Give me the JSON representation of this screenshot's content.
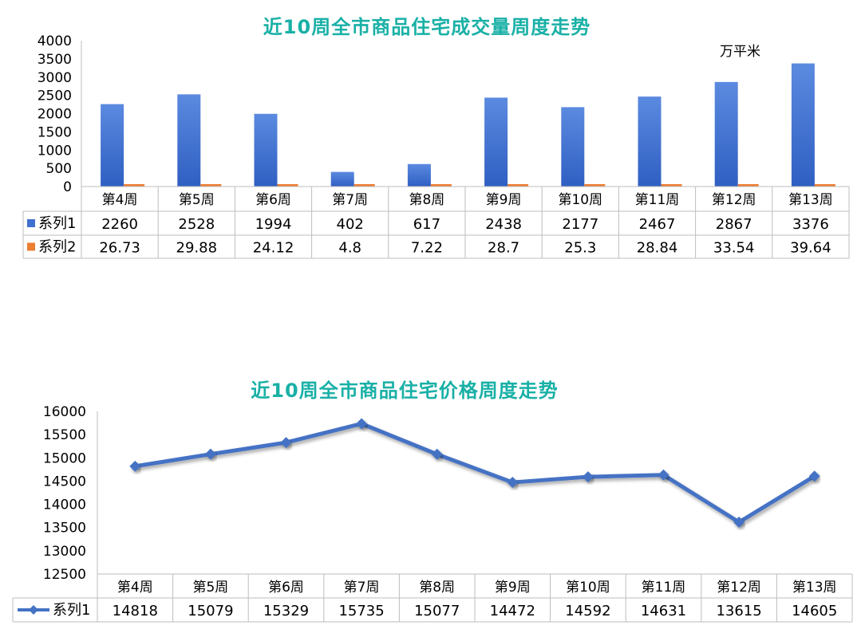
{
  "chart_data": [
    {
      "type": "bar",
      "title": "近10周全市商品住宅成交量周度走势",
      "unit_label": "万平米",
      "categories": [
        "第4周",
        "第5周",
        "第6周",
        "第7周",
        "第8周",
        "第9周",
        "第10周",
        "第11周",
        "第12周",
        "第13周"
      ],
      "series": [
        {
          "name": "系列1",
          "color": "#3f6fd0",
          "values": [
            2260,
            2528,
            1994,
            402,
            617,
            2438,
            2177,
            2467,
            2867,
            3376
          ]
        },
        {
          "name": "系列2",
          "color": "#ed7d31",
          "values": [
            26.73,
            29.88,
            24.12,
            4.8,
            7.22,
            28.7,
            25.3,
            28.84,
            33.54,
            39.64
          ]
        }
      ],
      "ylim": [
        0,
        4000
      ],
      "yticks": [
        "4000",
        "3500",
        "3000",
        "2500",
        "2000",
        "1500",
        "1000",
        "500",
        "0"
      ],
      "value_labels": [
        [
          "2260",
          "2528",
          "1994",
          "402",
          "617",
          "2438",
          "2177",
          "2467",
          "2867",
          "3376"
        ],
        [
          "26.73",
          "29.88",
          "24.12",
          "4.8",
          "7.22",
          "28.7",
          "25.3",
          "28.84",
          "33.54",
          "39.64"
        ]
      ],
      "grid": false,
      "legend": "data-table"
    },
    {
      "type": "line",
      "title": "近10周全市商品住宅价格周度走势",
      "categories": [
        "第4周",
        "第5周",
        "第6周",
        "第7周",
        "第8周",
        "第9周",
        "第10周",
        "第11周",
        "第12周",
        "第13周"
      ],
      "series": [
        {
          "name": "系列1",
          "color": "#4472c4",
          "values": [
            14818,
            15079,
            15329,
            15735,
            15077,
            14472,
            14592,
            14631,
            13615,
            14605
          ]
        }
      ],
      "ylim": [
        12500,
        16000
      ],
      "yticks": [
        "16000",
        "15500",
        "15000",
        "14500",
        "14000",
        "13500",
        "13000",
        "12500"
      ],
      "value_labels": [
        [
          "14818",
          "15079",
          "15329",
          "15735",
          "15077",
          "14472",
          "14592",
          "14631",
          "13615",
          "14605"
        ]
      ],
      "grid": false,
      "legend": "data-table"
    }
  ]
}
